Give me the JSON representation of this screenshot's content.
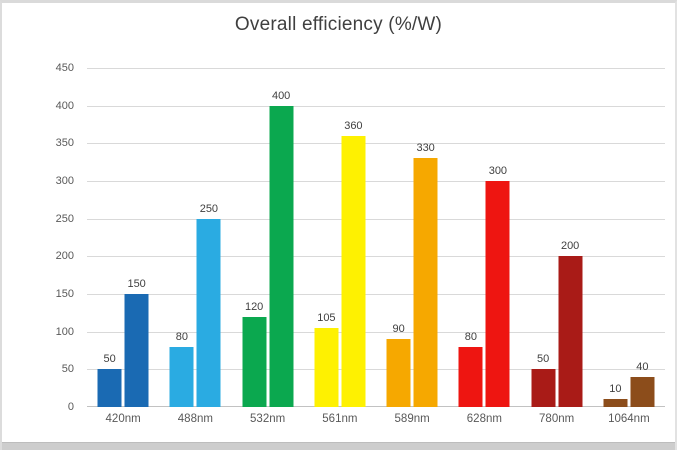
{
  "page": {
    "background": "#ffffff",
    "frame_border_color": "#dadada",
    "bottom_strip_color": "#cdcdcd"
  },
  "chart_data": {
    "type": "bar",
    "title": "Overall efficiency (%/W)",
    "categories": [
      "420nm",
      "488nm",
      "532nm",
      "561nm",
      "589nm",
      "628nm",
      "780nm",
      "1064nm"
    ],
    "series": [
      {
        "values": [
          50,
          80,
          120,
          105,
          90,
          80,
          50,
          10
        ]
      },
      {
        "values": [
          150,
          250,
          400,
          360,
          330,
          300,
          200,
          40
        ]
      }
    ],
    "group_colors": [
      "#1a6ab3",
      "#2aabe2",
      "#0ba84f",
      "#fef101",
      "#f6a800",
      "#ee1511",
      "#a91b17",
      "#8c4d1b"
    ],
    "value_labels_shown": true,
    "xlabel": "",
    "ylabel": "",
    "ylim": [
      0,
      450
    ],
    "yticks": [
      0,
      50,
      100,
      150,
      200,
      250,
      300,
      350,
      400,
      450
    ],
    "grid": true,
    "legend": "none",
    "text_colors": {
      "title": "#3f3f3f",
      "tick_labels": "#595959",
      "value_labels": "#404040"
    },
    "gridline_color": "#d9d9d9"
  }
}
